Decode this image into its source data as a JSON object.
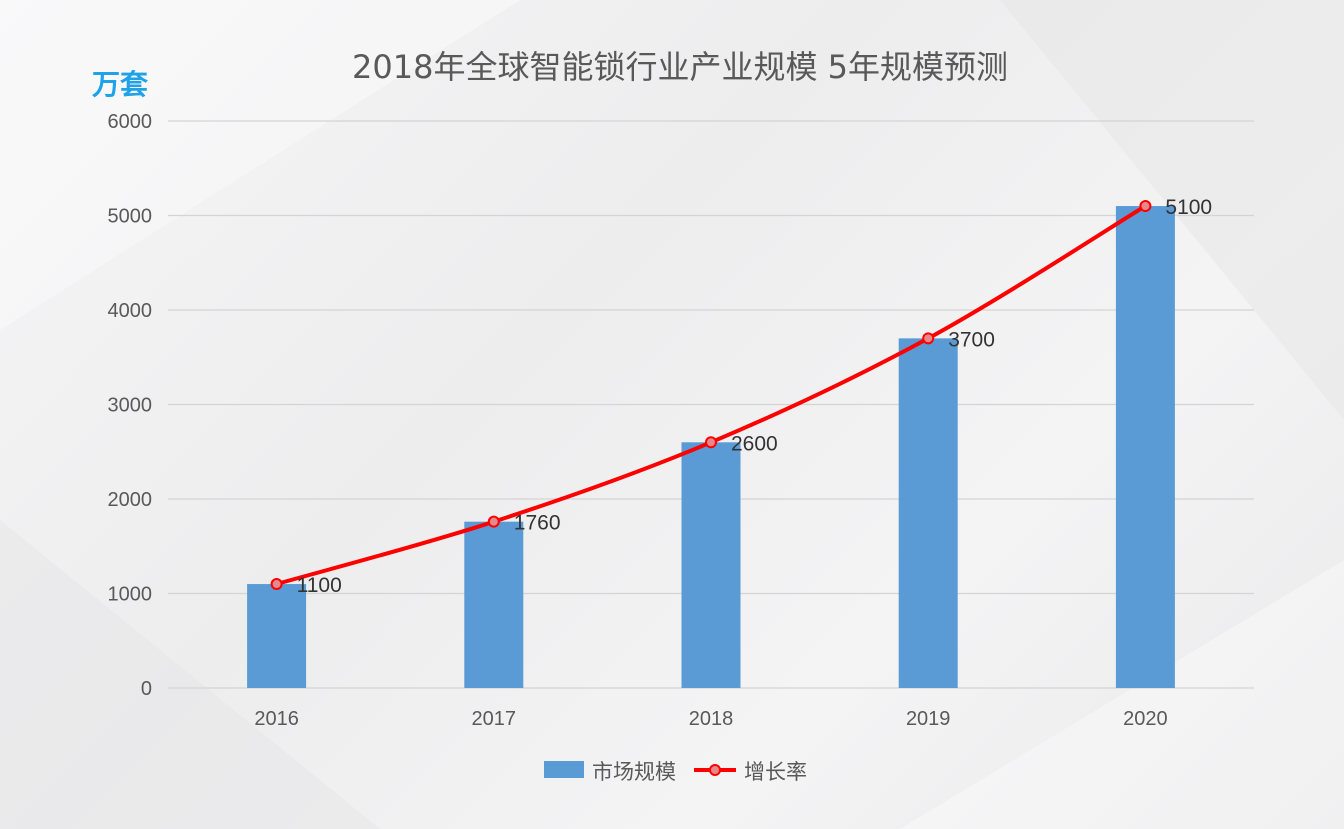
{
  "chart_data": {
    "type": "bar",
    "title": "2018年全球智能锁行业产业规模 5年规模预测",
    "unit_label": "万套",
    "categories": [
      "2016",
      "2017",
      "2018",
      "2019",
      "2020"
    ],
    "series": [
      {
        "name": "市场规模",
        "type": "bar",
        "color": "#5b9bd5",
        "values": [
          1100,
          1760,
          2600,
          3700,
          5100
        ]
      },
      {
        "name": "增长率",
        "type": "line",
        "color": "#ff0000",
        "marker_color": "#e8888a",
        "values": [
          1100,
          1760,
          2600,
          3700,
          5100
        ]
      }
    ],
    "data_labels": [
      "1100",
      "1760",
      "2600",
      "3700",
      "5100"
    ],
    "ylim": [
      0,
      6000
    ],
    "yticks": [
      "0",
      "1000",
      "2000",
      "3000",
      "4000",
      "5000",
      "6000"
    ],
    "grid": true,
    "legend_position": "bottom"
  }
}
